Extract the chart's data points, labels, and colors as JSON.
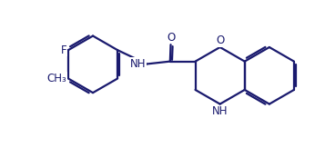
{
  "bg_color": "#ffffff",
  "line_color": "#1a1a6e",
  "line_width": 1.6,
  "font_size": 8.5,
  "figsize": [
    3.57,
    1.63
  ],
  "dpi": 100,
  "xlim": [
    0,
    10
  ],
  "ylim": [
    0,
    4.5
  ]
}
